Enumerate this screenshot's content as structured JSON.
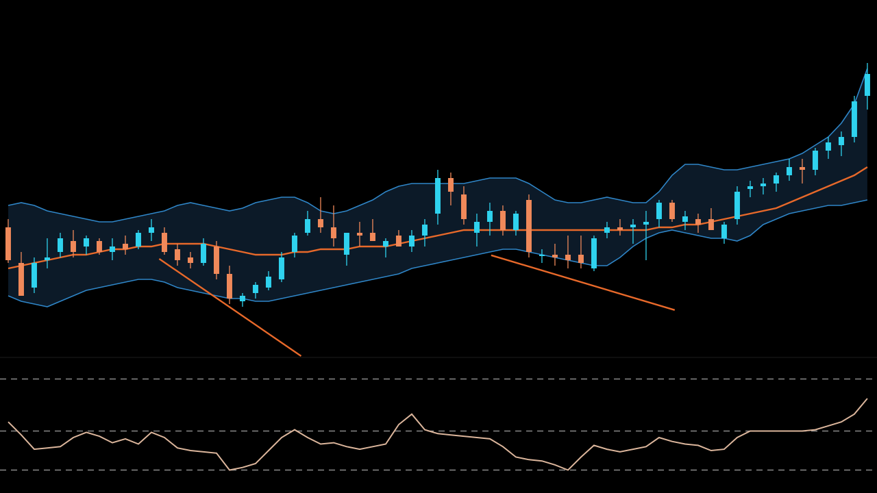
{
  "chart_data": [
    {
      "type": "candlestick",
      "xlim": [
        -0.63,
        66.74
      ],
      "ylim": [
        0,
        130
      ],
      "up_color": "#2fd2ee",
      "down_color": "#f0895a",
      "open": [
        47,
        34,
        25,
        35,
        38,
        42,
        40,
        42,
        38,
        41,
        40,
        45,
        45,
        39,
        36,
        34,
        40,
        30,
        20,
        23,
        25,
        28,
        38,
        45,
        50,
        47,
        37,
        45,
        45,
        40,
        44,
        40,
        44,
        52,
        65,
        59,
        45,
        49,
        53,
        46,
        57,
        37,
        37,
        37,
        37,
        32,
        45,
        47,
        47,
        48,
        50,
        56,
        49,
        50,
        50,
        43,
        50,
        61,
        62,
        63,
        66,
        69,
        68,
        75,
        77,
        80,
        95
      ],
      "high": [
        50,
        38,
        36,
        43,
        45,
        46,
        44,
        43,
        43,
        44,
        46,
        50,
        47,
        41,
        38,
        43,
        42,
        33,
        23,
        27,
        31,
        38,
        45,
        53,
        58,
        55,
        45,
        49,
        50,
        43,
        46,
        46,
        50,
        68,
        67,
        62,
        52,
        56,
        55,
        53,
        59,
        39,
        41,
        44,
        44,
        44,
        49,
        50,
        50,
        53,
        57,
        57,
        53,
        52,
        54,
        49,
        62,
        64,
        65,
        67,
        72,
        72,
        76,
        80,
        82,
        95,
        107
      ],
      "low": [
        34,
        22,
        23,
        32,
        36,
        36,
        37,
        37,
        35,
        37,
        39,
        42,
        37,
        33,
        32,
        33,
        28,
        19,
        18,
        21,
        24,
        27,
        36,
        44,
        45,
        40,
        33,
        40,
        42,
        36,
        40,
        38,
        40,
        48,
        55,
        48,
        40,
        44,
        44,
        44,
        36,
        34,
        33,
        32,
        32,
        31,
        43,
        44,
        41,
        35,
        47,
        49,
        46,
        45,
        46,
        41,
        48,
        58,
        59,
        60,
        64,
        63,
        66,
        72,
        73,
        78,
        90
      ],
      "close": [
        35,
        22,
        34,
        36,
        43,
        38,
        43,
        38,
        40,
        39,
        45,
        47,
        38,
        35,
        34,
        41,
        30,
        21,
        22,
        26,
        29,
        36,
        44,
        50,
        47,
        43,
        45,
        44,
        42,
        42,
        40,
        44,
        48,
        65,
        60,
        50,
        49,
        53,
        46,
        52,
        38,
        37,
        36,
        35,
        34,
        43,
        47,
        46,
        48,
        49,
        56,
        50,
        51,
        48,
        46,
        48,
        60,
        62,
        63,
        66,
        69,
        68,
        75,
        78,
        80,
        93,
        103
      ],
      "bands": {
        "upper": [
          55,
          56,
          55,
          53,
          52,
          51,
          50,
          49,
          49,
          50,
          51,
          52,
          53,
          55,
          56,
          55,
          54,
          53,
          54,
          56,
          57,
          58,
          58,
          56,
          53,
          52,
          53,
          55,
          57,
          60,
          62,
          63,
          63,
          63,
          63,
          63,
          64,
          65,
          65,
          65,
          63,
          60,
          57,
          56,
          56,
          57,
          58,
          57,
          56,
          56,
          60,
          66,
          70,
          70,
          69,
          68,
          68,
          69,
          70,
          71,
          72,
          74,
          77,
          80,
          85,
          92,
          105
        ],
        "middle": [
          32,
          33,
          34,
          35,
          36,
          37,
          37,
          38,
          39,
          39,
          40,
          40,
          41,
          41,
          41,
          41,
          40,
          39,
          38,
          37,
          37,
          37,
          38,
          38,
          39,
          39,
          39,
          40,
          40,
          40,
          41,
          42,
          43,
          44,
          45,
          46,
          46,
          46,
          46,
          46,
          46,
          46,
          46,
          46,
          46,
          46,
          46,
          46,
          46,
          46,
          47,
          47,
          48,
          48,
          49,
          50,
          51,
          52,
          53,
          54,
          56,
          58,
          60,
          62,
          64,
          66,
          69
        ],
        "lower": [
          22,
          20,
          19,
          18,
          20,
          22,
          24,
          25,
          26,
          27,
          28,
          28,
          27,
          25,
          24,
          23,
          22,
          21,
          21,
          20,
          20,
          21,
          22,
          23,
          24,
          25,
          26,
          27,
          28,
          29,
          30,
          32,
          33,
          34,
          35,
          36,
          37,
          38,
          39,
          39,
          38,
          37,
          36,
          35,
          34,
          33,
          33,
          36,
          40,
          43,
          45,
          46,
          45,
          44,
          43,
          43,
          42,
          44,
          48,
          50,
          52,
          53,
          54,
          55,
          55,
          56,
          57
        ],
        "line_color": "#2f86c8",
        "fill": "#0c1a28",
        "middle_color": "#e8692a"
      },
      "trendlines": [
        {
          "x": [
            11.6,
            22.5
          ],
          "y": [
            35.5,
            0
          ]
        },
        {
          "x": [
            37.1,
            51.2
          ],
          "y": [
            36.8,
            16.8
          ]
        }
      ],
      "trendline_color": "#e8692a"
    },
    {
      "type": "line",
      "xlim": [
        -0.63,
        66.74
      ],
      "ylim": [
        0,
        100
      ],
      "values": [
        52,
        42,
        31,
        32,
        33,
        40,
        44,
        41,
        36,
        39,
        35,
        44,
        40,
        32,
        30,
        29,
        28,
        15,
        17,
        20,
        30,
        40,
        46,
        40,
        35,
        36,
        33,
        31,
        33,
        35,
        50,
        58,
        46,
        43,
        42,
        41,
        40,
        39,
        33,
        25,
        23,
        22,
        19,
        15,
        25,
        34,
        31,
        29,
        31,
        33,
        40,
        37,
        35,
        34,
        30,
        31,
        40,
        45,
        45,
        45,
        45,
        45,
        46,
        49,
        52,
        58,
        70
      ],
      "color": "#dcb69c",
      "levels": [
        85,
        45,
        15
      ],
      "level_color": "#8a8a8a"
    }
  ]
}
